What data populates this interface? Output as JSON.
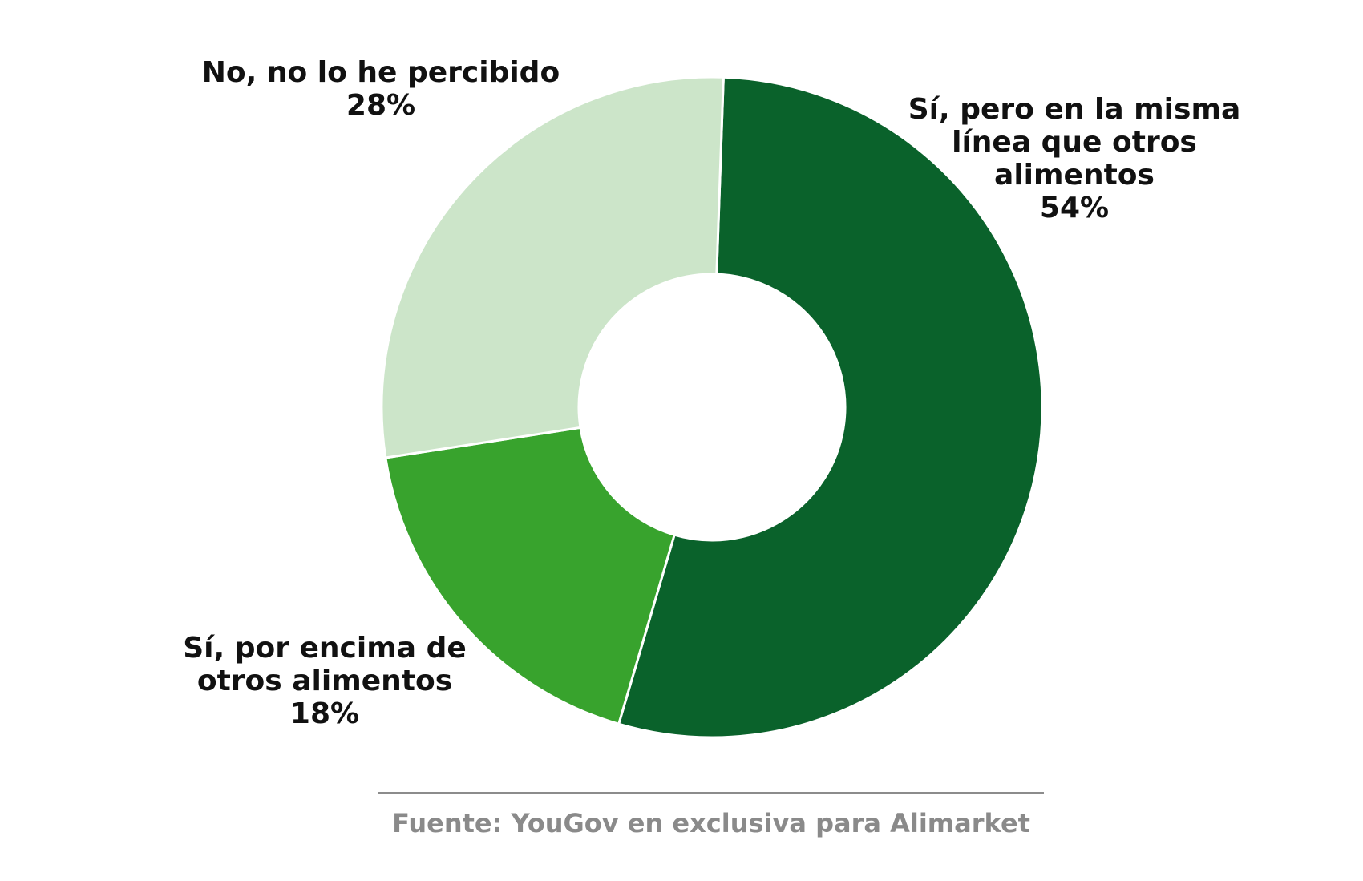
{
  "chart_data": {
    "type": "pie",
    "variant": "donut",
    "slices": [
      {
        "label_lines": [
          "Sí, pero en la misma",
          "línea que otros",
          "alimentos"
        ],
        "value": 54,
        "value_label": "54%",
        "color": "#0a622b"
      },
      {
        "label_lines": [
          "Sí, por encima de",
          "otros alimentos"
        ],
        "value": 18,
        "value_label": "18%",
        "color": "#38a32d"
      },
      {
        "label_lines": [
          "No, no lo he percibido"
        ],
        "value": 28,
        "value_label": "28%",
        "color": "#cce5c9"
      }
    ]
  },
  "source": "Fuente: YouGov en exclusiva para Alimarket"
}
